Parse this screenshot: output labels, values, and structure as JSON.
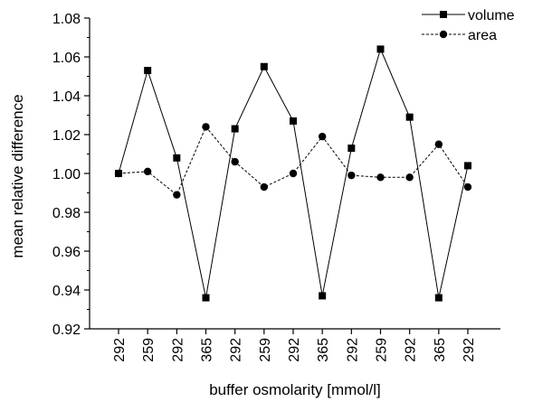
{
  "chart_data": {
    "type": "line",
    "xlabel": "buffer osmolarity [mmol/l]",
    "ylabel": "mean relative difference",
    "categories": [
      "292",
      "259",
      "292",
      "365",
      "292",
      "259",
      "292",
      "365",
      "292",
      "259",
      "292",
      "365",
      "292"
    ],
    "ylim": [
      0.92,
      1.08
    ],
    "yticks": [
      "0.92",
      "0.94",
      "0.96",
      "0.98",
      "1.00",
      "1.02",
      "1.04",
      "1.06",
      "1.08"
    ],
    "legend_position": "top-right",
    "grid": false,
    "series": [
      {
        "name": "volume",
        "marker": "square",
        "line": "solid",
        "color": "#000000",
        "values": [
          1.0,
          1.053,
          1.008,
          0.936,
          1.023,
          1.055,
          1.027,
          0.937,
          1.013,
          1.064,
          1.029,
          0.936,
          1.004
        ]
      },
      {
        "name": "area",
        "marker": "circle",
        "line": "dashed",
        "color": "#000000",
        "values": [
          1.0,
          1.001,
          0.989,
          1.024,
          1.006,
          0.993,
          1.0,
          1.019,
          0.999,
          0.998,
          0.998,
          1.015,
          0.993
        ]
      }
    ]
  }
}
